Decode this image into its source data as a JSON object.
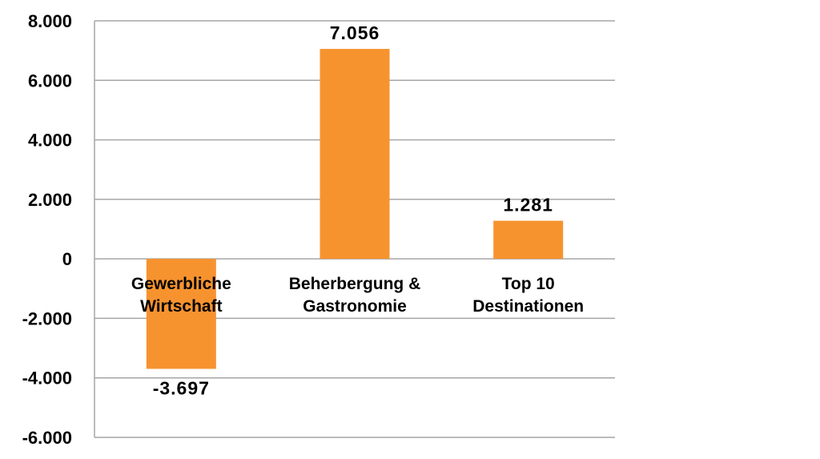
{
  "chart_data": {
    "type": "bar",
    "categories": [
      [
        "Gewerbliche",
        "Wirtschaft"
      ],
      [
        "Beherbergung &",
        "Gastronomie"
      ],
      [
        "Top 10",
        "Destinationen"
      ]
    ],
    "values": [
      -3697,
      7056,
      1281
    ],
    "data_labels": [
      "-3.697",
      "7.056",
      "1.281"
    ],
    "ylim": [
      -6000,
      8000
    ],
    "yticks": [
      8000,
      6000,
      4000,
      2000,
      0,
      -2000,
      -4000,
      -6000
    ],
    "ytick_labels": [
      "8.000",
      "6.000",
      "4.000",
      "2.000",
      "0",
      "-2.000",
      "-4.000",
      "-6.000"
    ],
    "grid": true,
    "bar_color": "#f7932f",
    "grid_color": "#a6a6a6",
    "title": "",
    "xlabel": "",
    "ylabel": ""
  }
}
